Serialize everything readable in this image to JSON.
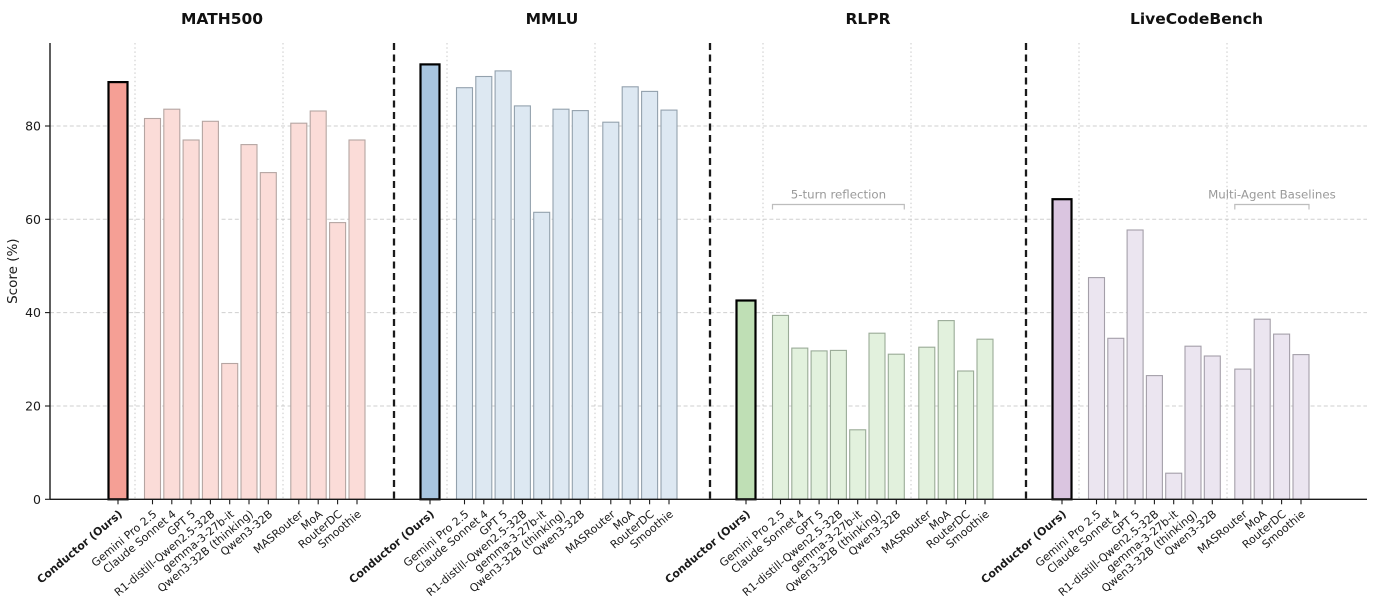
{
  "chart_data": {
    "type": "bar",
    "ylabel": "Score (%)",
    "yticks": [
      0,
      20,
      40,
      60,
      80
    ],
    "ylim": [
      0,
      97.8
    ],
    "grid": "horizontal-dashed",
    "categories": [
      "Conductor (Ours)",
      "Gemini Pro 2.5",
      "Claude Sonnet 4",
      "GPT 5",
      "R1-distill-Qwen2.5-32B",
      "gemma-3-27b-it",
      "Qwen3-32B (thinking)",
      "Qwen3-32B",
      "MASRouter",
      "MoA",
      "RouterDC",
      "Smoothie"
    ],
    "highlight_category": "Conductor (Ours)",
    "groups": {
      "highlight": [
        0
      ],
      "models": [
        1,
        2,
        3,
        4,
        5,
        6,
        7
      ],
      "multi": [
        8,
        9,
        10,
        11
      ]
    },
    "panels": [
      {
        "title": "MATH500",
        "values": [
          89.4,
          81.6,
          83.6,
          77.0,
          81.0,
          29.1,
          76.0,
          70.0,
          80.6,
          83.2,
          59.3,
          77.0
        ],
        "colors": {
          "highlight": "#f59f95",
          "bar": "#fbdcd8",
          "edge": "#b5a5a2",
          "highlight_edge": "#000000"
        },
        "annotation": null
      },
      {
        "title": "MMLU",
        "values": [
          93.2,
          88.2,
          90.6,
          91.8,
          84.3,
          61.5,
          83.6,
          83.3,
          80.8,
          88.4,
          87.4,
          83.4
        ],
        "colors": {
          "highlight": "#a9c6e0",
          "bar": "#dde8f2",
          "edge": "#93a1ad",
          "highlight_edge": "#000000"
        },
        "annotation": null
      },
      {
        "title": "RLPR",
        "values": [
          42.6,
          39.4,
          32.4,
          31.8,
          31.9,
          14.9,
          35.6,
          31.1,
          32.6,
          38.3,
          27.5,
          34.3
        ],
        "colors": {
          "highlight": "#bfdfb5",
          "bar": "#e2f1dd",
          "edge": "#9aab97",
          "highlight_edge": "#000000"
        },
        "annotation": {
          "text": "5-turn reflection",
          "group": "models"
        }
      },
      {
        "title": "LiveCodeBench",
        "values": [
          64.3,
          47.5,
          34.5,
          57.7,
          26.5,
          5.6,
          32.8,
          30.7,
          27.9,
          38.6,
          35.4,
          31.0
        ],
        "colors": {
          "highlight": "#dac5e0",
          "bar": "#ebe5f0",
          "edge": "#a49fa9",
          "highlight_edge": "#000000"
        },
        "annotation": {
          "text": "Multi-Agent Baselines",
          "group": "multi"
        }
      }
    ],
    "style_colors": {
      "grid": "#cfcfcf",
      "panel_separator": "#1a1a1a",
      "group_separator": "#c9c9c9",
      "annotation_text": "#9a9a9a",
      "annotation_bracket": "#bdbdbd",
      "axis": "#1a1a1a",
      "tick_label": "#1a1a1a",
      "title": "#111111"
    }
  }
}
